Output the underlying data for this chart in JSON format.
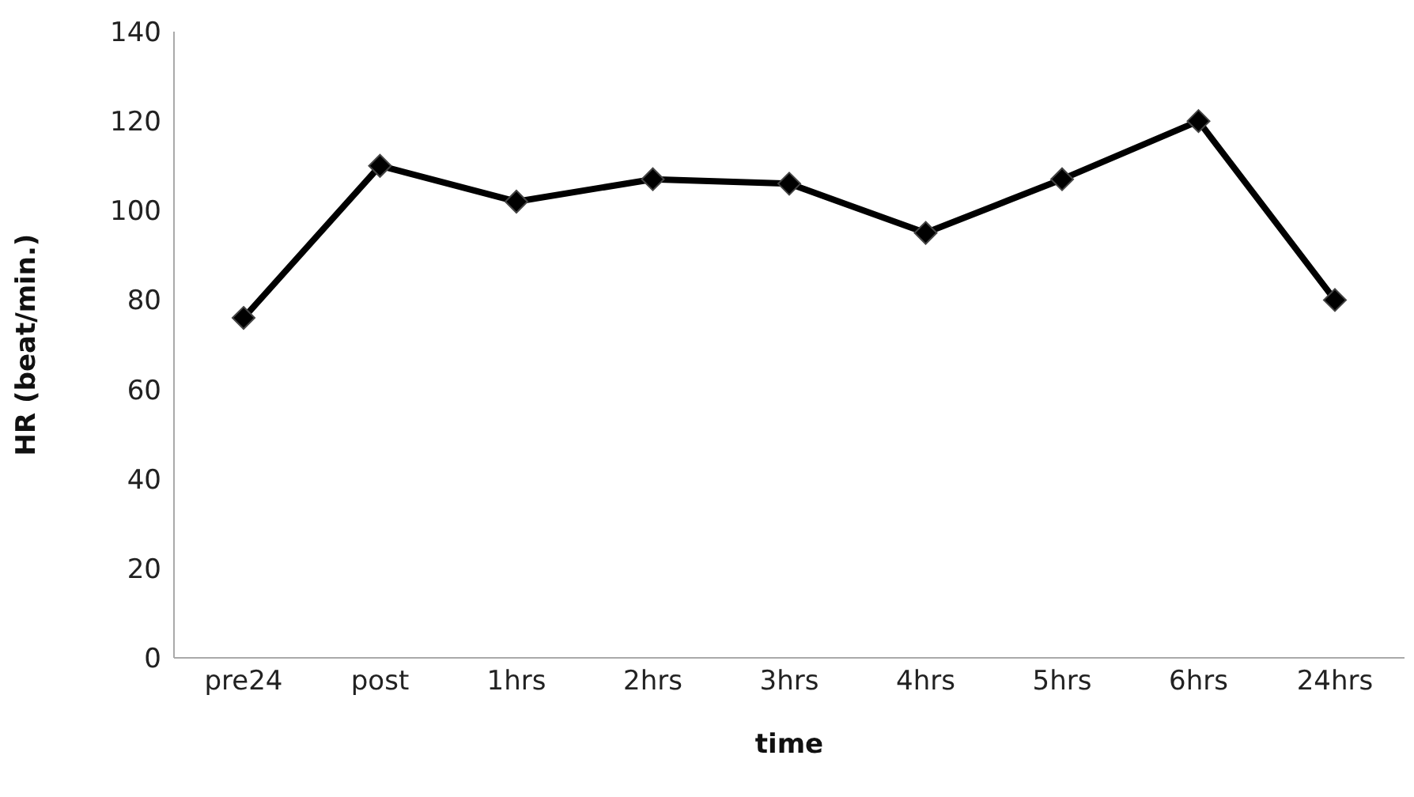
{
  "chart_data": {
    "type": "line",
    "xlabel": "time",
    "ylabel": "HR (beat/min.)",
    "categories": [
      "pre24",
      "post",
      "1hrs",
      "2hrs",
      "3hrs",
      "4hrs",
      "5hrs",
      "6hrs",
      "24hrs"
    ],
    "series": [
      {
        "color": "#000000",
        "values": [
          76,
          110,
          102,
          107,
          106,
          95,
          107,
          120,
          80
        ]
      }
    ],
    "ylim": [
      0,
      140
    ],
    "yticks": [
      0,
      20,
      40,
      60,
      80,
      100,
      120,
      140
    ],
    "marker": "diamond",
    "line_style": "solid"
  }
}
